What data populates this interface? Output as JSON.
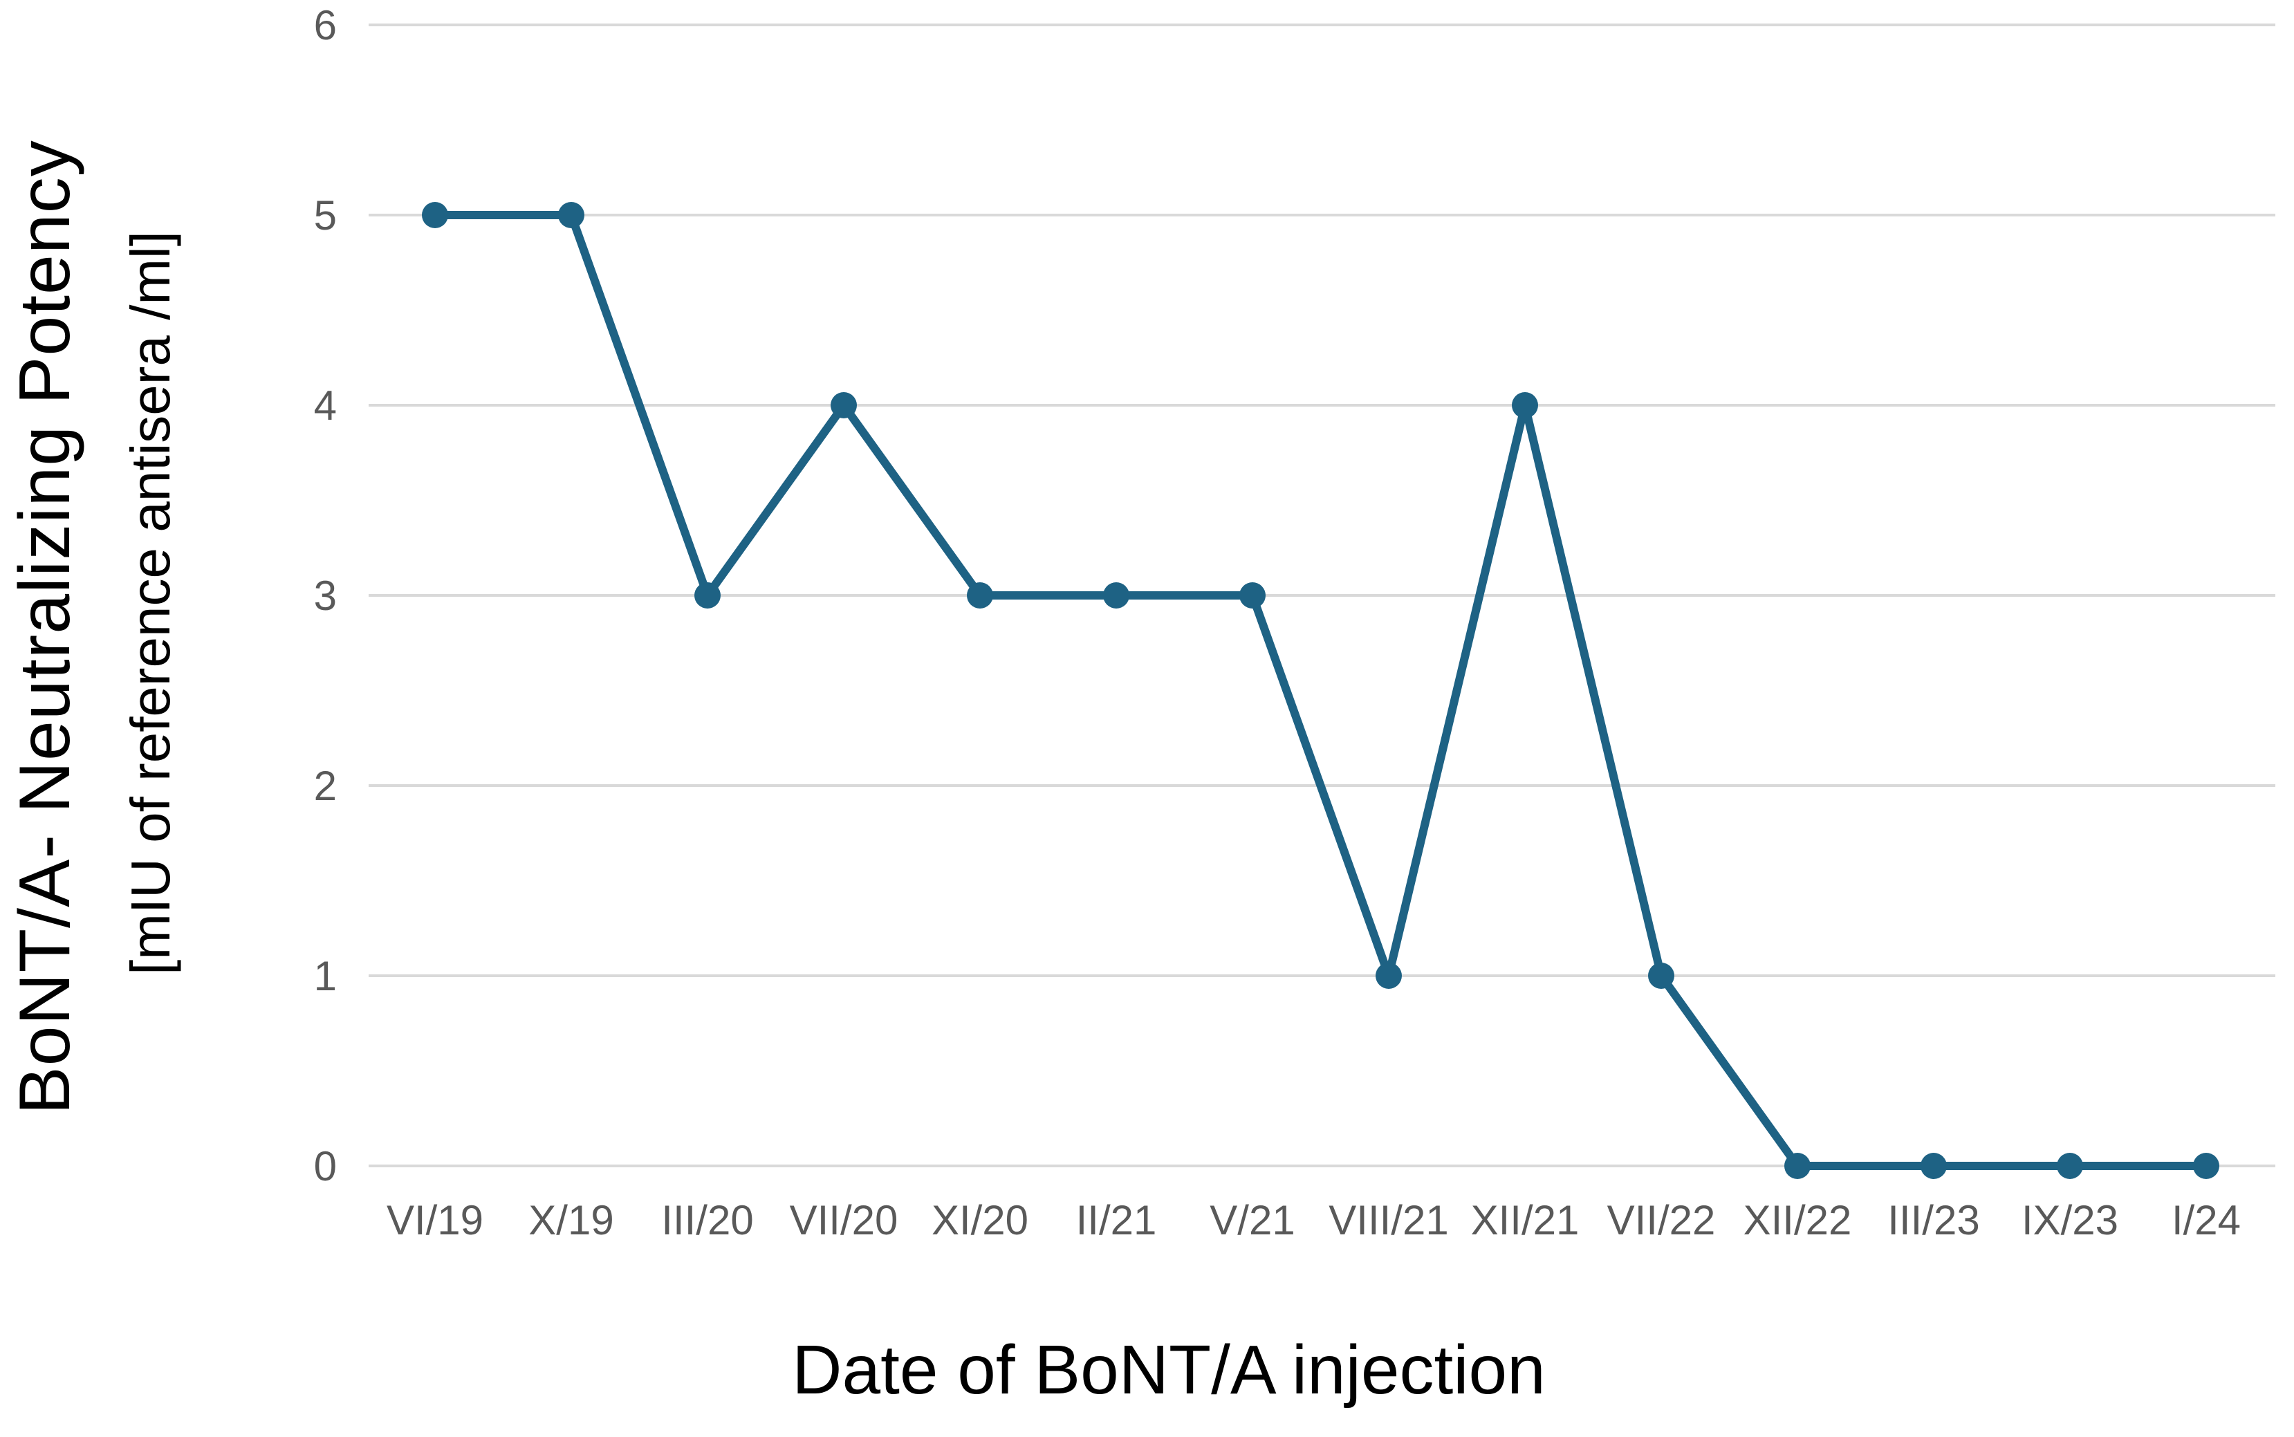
{
  "chart_data": {
    "type": "line",
    "title": "",
    "categories": [
      "VI/19",
      "X/19",
      "III/20",
      "VII/20",
      "XI/20",
      "II/21",
      "V/21",
      "VIII/21",
      "XII/21",
      "VII/22",
      "XII/22",
      "III/23",
      "IX/23",
      "I/24"
    ],
    "values": [
      5,
      5,
      3,
      4,
      3,
      3,
      3,
      1,
      4,
      1,
      0,
      0,
      0,
      0
    ],
    "xlabel": "Date of BoNT/A injection",
    "ylabel_main": "BoNT/A- Neutralizing Potency",
    "ylabel_unit": "[mIU of reference antisera /ml]",
    "ylim": [
      0,
      6
    ],
    "yticks": [
      0,
      1,
      2,
      3,
      4,
      5,
      6
    ],
    "grid": "horizontal-only",
    "legend": "none",
    "marker": "filled-circle",
    "colors": {
      "line": "#1E6284",
      "marker": "#1E6284",
      "gridline": "#D9D9D9",
      "tick_label": "#595959",
      "axis_title": "#000000",
      "background": "#FFFFFF"
    }
  }
}
